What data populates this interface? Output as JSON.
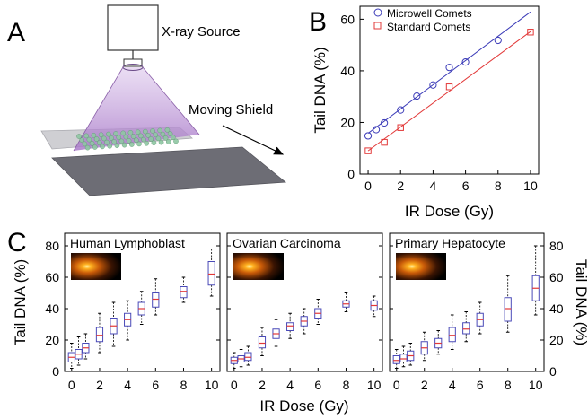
{
  "panel_labels": {
    "a": "A",
    "b": "B",
    "c": "C"
  },
  "illustration": {
    "source_label": "X-ray Source",
    "shield_label": "Moving Shield",
    "colors": {
      "beam": "#b98fd6",
      "beam_edge": "#8a5fa8",
      "shield": "#6d6d75",
      "stage": "#c9c9cc",
      "wells": "#8fc7a3"
    }
  },
  "chart_data": [
    {
      "id": "B",
      "type": "scatter",
      "xlabel": "IR Dose (Gy)",
      "ylabel": "Tail DNA (%)",
      "xlim": [
        -0.5,
        10.5
      ],
      "ylim": [
        0,
        65
      ],
      "xticks": [
        0,
        2,
        4,
        6,
        8,
        10
      ],
      "yticks": [
        0,
        20,
        40,
        60
      ],
      "legend_position": "top-left",
      "series": [
        {
          "name": "Microwell Comets",
          "marker": "circle",
          "color": "#3b3bb8",
          "x": [
            0,
            0.5,
            1,
            2,
            3,
            4,
            5,
            6,
            8
          ],
          "y": [
            14.8,
            17.2,
            19.8,
            24.8,
            30.2,
            34.5,
            41.3,
            43.4,
            51.8
          ],
          "fit": {
            "x": [
              0,
              10
            ],
            "y": [
              15.8,
              62.8
            ]
          }
        },
        {
          "name": "Standard Comets",
          "marker": "square",
          "color": "#e23838",
          "x": [
            0,
            1,
            2,
            5,
            10
          ],
          "y": [
            9.0,
            12.3,
            18.0,
            33.8,
            55.0
          ],
          "fit": {
            "x": [
              0,
              10
            ],
            "y": [
              9.0,
              55.2
            ]
          }
        }
      ]
    },
    {
      "id": "C",
      "type": "box",
      "xlabel": "IR Dose (Gy)",
      "ylabel_left": "Tail DNA (%)",
      "ylabel_right": "Tail DNA (%)",
      "xlim": [
        -0.5,
        10.6
      ],
      "ylim": [
        0,
        88
      ],
      "xticks": [
        0,
        2,
        4,
        6,
        8,
        10
      ],
      "yticks": [
        0,
        20,
        40,
        60,
        80
      ],
      "box_color": "#4a4ab8",
      "median_color": "#e23838",
      "panels": [
        {
          "title": "Human Lymphoblast",
          "boxes": [
            {
              "x": 0,
              "min": 2,
              "q1": 6,
              "med": 9,
              "q3": 12,
              "max": 18
            },
            {
              "x": 0.5,
              "min": 4,
              "q1": 8,
              "med": 11,
              "q3": 14,
              "max": 22
            },
            {
              "x": 1,
              "min": 8,
              "q1": 12,
              "med": 15,
              "q3": 18,
              "max": 24
            },
            {
              "x": 2,
              "min": 12,
              "q1": 19,
              "med": 23,
              "q3": 28,
              "max": 37
            },
            {
              "x": 3,
              "min": 16,
              "q1": 24,
              "med": 29,
              "q3": 34,
              "max": 44
            },
            {
              "x": 4,
              "min": 20,
              "q1": 29,
              "med": 33,
              "q3": 37,
              "max": 45
            },
            {
              "x": 5,
              "min": 30,
              "q1": 36,
              "med": 40,
              "q3": 44,
              "max": 51
            },
            {
              "x": 6,
              "min": 36,
              "q1": 41,
              "med": 46,
              "q3": 50,
              "max": 59
            },
            {
              "x": 8,
              "min": 44,
              "q1": 47,
              "med": 51,
              "q3": 54,
              "max": 60
            },
            {
              "x": 10,
              "min": 48,
              "q1": 55,
              "med": 62,
              "q3": 70,
              "max": 78
            }
          ]
        },
        {
          "title": "Ovarian Carcinoma",
          "boxes": [
            {
              "x": 0,
              "min": 2,
              "q1": 5,
              "med": 7,
              "q3": 9,
              "max": 12
            },
            {
              "x": 0.5,
              "min": 3,
              "q1": 6,
              "med": 8,
              "q3": 10,
              "max": 14
            },
            {
              "x": 1,
              "min": 4,
              "q1": 7,
              "med": 9,
              "q3": 12,
              "max": 16
            },
            {
              "x": 2,
              "min": 10,
              "q1": 15,
              "med": 18,
              "q3": 22,
              "max": 28
            },
            {
              "x": 3,
              "min": 16,
              "q1": 21,
              "med": 24,
              "q3": 27,
              "max": 33
            },
            {
              "x": 4,
              "min": 21,
              "q1": 26,
              "med": 29,
              "q3": 31,
              "max": 37
            },
            {
              "x": 5,
              "min": 24,
              "q1": 29,
              "med": 32,
              "q3": 35,
              "max": 40
            },
            {
              "x": 6,
              "min": 30,
              "q1": 34,
              "med": 37,
              "q3": 40,
              "max": 46
            },
            {
              "x": 8,
              "min": 38,
              "q1": 41,
              "med": 43,
              "q3": 45,
              "max": 50
            },
            {
              "x": 10,
              "min": 35,
              "q1": 39,
              "med": 42,
              "q3": 45,
              "max": 48
            }
          ]
        },
        {
          "title": "Primary Hepatocyte",
          "boxes": [
            {
              "x": 0,
              "min": 2,
              "q1": 5,
              "med": 7,
              "q3": 10,
              "max": 14
            },
            {
              "x": 0.5,
              "min": 3,
              "q1": 6,
              "med": 8,
              "q3": 11,
              "max": 16
            },
            {
              "x": 1,
              "min": 4,
              "q1": 7,
              "med": 10,
              "q3": 13,
              "max": 18
            },
            {
              "x": 2,
              "min": 7,
              "q1": 11,
              "med": 15,
              "q3": 19,
              "max": 25
            },
            {
              "x": 3,
              "min": 11,
              "q1": 15,
              "med": 18,
              "q3": 21,
              "max": 26
            },
            {
              "x": 4,
              "min": 14,
              "q1": 19,
              "med": 23,
              "q3": 28,
              "max": 36
            },
            {
              "x": 5,
              "min": 19,
              "q1": 24,
              "med": 27,
              "q3": 31,
              "max": 38
            },
            {
              "x": 6,
              "min": 24,
              "q1": 29,
              "med": 33,
              "q3": 37,
              "max": 44
            },
            {
              "x": 8,
              "min": 25,
              "q1": 32,
              "med": 40,
              "q3": 47,
              "max": 61
            },
            {
              "x": 10,
              "min": 36,
              "q1": 45,
              "med": 53,
              "q3": 61,
              "max": 80
            }
          ]
        }
      ]
    }
  ]
}
